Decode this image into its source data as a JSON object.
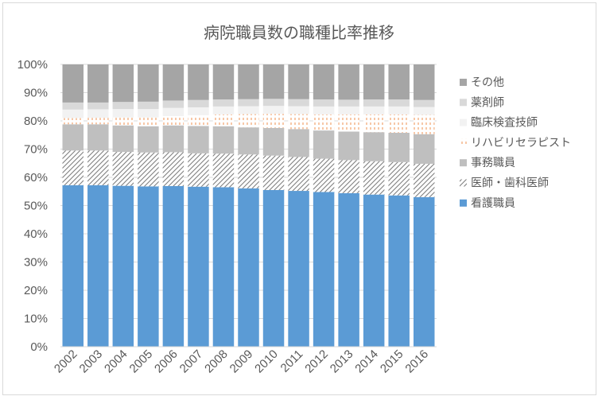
{
  "chart_data": {
    "type": "bar",
    "stacked": true,
    "percent": true,
    "title": "病院職員数の職種比率推移",
    "xlabel": "",
    "ylabel": "",
    "ylim": [
      0,
      100
    ],
    "yticks": [
      "0%",
      "10%",
      "20%",
      "30%",
      "40%",
      "50%",
      "60%",
      "70%",
      "80%",
      "90%",
      "100%"
    ],
    "categories": [
      "2002",
      "2003",
      "2004",
      "2005",
      "2006",
      "2007",
      "2008",
      "2009",
      "2010",
      "2011",
      "2012",
      "2013",
      "2014",
      "2015",
      "2016"
    ],
    "legend_position": "right",
    "grid": true,
    "series": [
      {
        "name": "看護職員",
        "color": "#5b9bd5",
        "pattern": "solid",
        "values": [
          57.2,
          57.2,
          57.0,
          56.8,
          56.9,
          56.7,
          56.5,
          56.1,
          55.5,
          55.2,
          54.8,
          54.4,
          53.9,
          53.6,
          53.0
        ]
      },
      {
        "name": "医師・歯科医師",
        "color": "#7f7f7f",
        "pattern": "diagonal",
        "values": [
          12.3,
          12.3,
          12.0,
          12.0,
          12.0,
          11.8,
          11.9,
          12.0,
          12.2,
          12.0,
          11.8,
          11.7,
          11.8,
          11.8,
          11.8
        ]
      },
      {
        "name": "事務職員",
        "color": "#bfbfbf",
        "pattern": "solid",
        "values": [
          9.3,
          9.3,
          9.4,
          9.3,
          9.5,
          9.7,
          9.7,
          9.6,
          9.8,
          9.9,
          10.0,
          10.1,
          10.3,
          10.4,
          10.5
        ]
      },
      {
        "name": "リハビリセラピスト",
        "color": "#f4b183",
        "pattern": "dashed-vertical",
        "values": [
          2.2,
          2.3,
          2.8,
          3.1,
          3.3,
          3.8,
          4.2,
          4.7,
          5.0,
          5.3,
          5.7,
          6.1,
          6.3,
          6.5,
          6.8
        ]
      },
      {
        "name": "臨床検査技師",
        "color": "#f2f2f2",
        "pattern": "solid",
        "values": [
          3.0,
          3.0,
          3.0,
          3.0,
          2.9,
          2.8,
          2.8,
          2.8,
          2.8,
          2.8,
          2.8,
          2.8,
          2.8,
          2.8,
          2.8
        ]
      },
      {
        "name": "薬剤師",
        "color": "#d9d9d9",
        "pattern": "solid",
        "values": [
          2.5,
          2.4,
          2.5,
          2.6,
          2.6,
          2.6,
          2.5,
          2.5,
          2.5,
          2.5,
          2.5,
          2.4,
          2.5,
          2.5,
          2.5
        ]
      },
      {
        "name": "その他",
        "color": "#a5a5a5",
        "pattern": "solid",
        "values": [
          13.5,
          13.5,
          13.3,
          13.2,
          12.8,
          12.6,
          12.4,
          12.3,
          12.2,
          12.3,
          12.4,
          12.5,
          12.4,
          12.4,
          12.6
        ]
      }
    ],
    "legend_order": [
      "その他",
      "薬剤師",
      "臨床検査技師",
      "リハビリセラピスト",
      "事務職員",
      "医師・歯科医師",
      "看護職員"
    ]
  }
}
